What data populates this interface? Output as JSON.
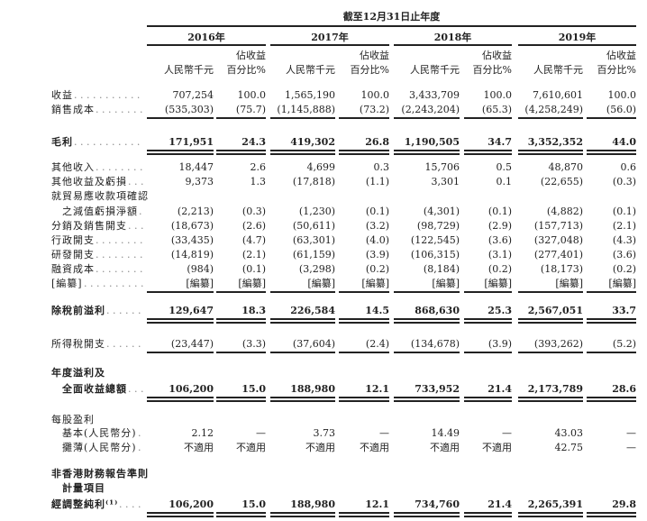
{
  "header": {
    "period": "截至12月31日止年度",
    "years": [
      "2016年",
      "2017年",
      "2018年",
      "2019年"
    ],
    "pct_top": "佔收益",
    "amount_unit": "人民幣千元",
    "pct_unit": "百分比%"
  },
  "rows": [
    {
      "label": "收益",
      "values": [
        "707,254",
        "100.0",
        "1,565,190",
        "100.0",
        "3,433,709",
        "100.0",
        "7,610,601",
        "100.0"
      ]
    },
    {
      "label": "銷售成本",
      "values": [
        "(535,303)",
        "(75.7)",
        "(1,145,888)",
        "(73.2)",
        "(2,243,204)",
        "(65.3)",
        "(4,258,249)",
        "(56.0)"
      ]
    },
    {
      "label": "毛利",
      "values": [
        "171,951",
        "24.3",
        "419,302",
        "26.8",
        "1,190,505",
        "34.7",
        "3,352,352",
        "44.0"
      ]
    },
    {
      "label": "其他收入",
      "values": [
        "18,447",
        "2.6",
        "4,699",
        "0.3",
        "15,706",
        "0.5",
        "48,870",
        "0.6"
      ]
    },
    {
      "label": "其他收益及虧損",
      "values": [
        "9,373",
        "1.3",
        "(17,818)",
        "(1.1)",
        "3,301",
        "0.1",
        "(22,655)",
        "(0.3)"
      ]
    },
    {
      "label": "就貿易應收款項確認",
      "values": []
    },
    {
      "label": "之減值虧損淨額",
      "values": [
        "(2,213)",
        "(0.3)",
        "(1,230)",
        "(0.1)",
        "(4,301)",
        "(0.1)",
        "(4,882)",
        "(0.1)"
      ]
    },
    {
      "label": "分銷及銷售開支",
      "values": [
        "(18,673)",
        "(2.6)",
        "(50,611)",
        "(3.2)",
        "(98,729)",
        "(2.9)",
        "(157,713)",
        "(2.1)"
      ]
    },
    {
      "label": "行政開支",
      "values": [
        "(33,435)",
        "(4.7)",
        "(63,301)",
        "(4.0)",
        "(122,545)",
        "(3.6)",
        "(327,048)",
        "(4.3)"
      ]
    },
    {
      "label": "研發開支",
      "values": [
        "(14,819)",
        "(2.1)",
        "(61,159)",
        "(3.9)",
        "(106,315)",
        "(3.1)",
        "(277,401)",
        "(3.6)"
      ]
    },
    {
      "label": "融資成本",
      "values": [
        "(984)",
        "(0.1)",
        "(3,298)",
        "(0.2)",
        "(8,184)",
        "(0.2)",
        "(18,173)",
        "(0.2)"
      ]
    },
    {
      "label": "[編纂]",
      "values": [
        "[編纂]",
        "[編纂]",
        "[編纂]",
        "[編纂]",
        "[編纂]",
        "[編纂]",
        "[編纂]",
        "[編纂]"
      ]
    },
    {
      "label": "除稅前溢利",
      "values": [
        "129,647",
        "18.3",
        "226,584",
        "14.5",
        "868,630",
        "25.3",
        "2,567,051",
        "33.7"
      ]
    },
    {
      "label": "所得稅開支",
      "values": [
        "(23,447)",
        "(3.3)",
        "(37,604)",
        "(2.4)",
        "(134,678)",
        "(3.9)",
        "(393,262)",
        "(5.2)"
      ]
    },
    {
      "label": "年度溢利及",
      "values": []
    },
    {
      "label": "全面收益總額",
      "values": [
        "106,200",
        "15.0",
        "188,980",
        "12.1",
        "733,952",
        "21.4",
        "2,173,789",
        "28.6"
      ]
    },
    {
      "label": "每股盈利",
      "values": []
    },
    {
      "label": "基本(人民幣分)",
      "values": [
        "2.12",
        "—",
        "3.73",
        "—",
        "14.49",
        "—",
        "43.03",
        "—"
      ]
    },
    {
      "label": "攤薄(人民幣分)",
      "values": [
        "不適用",
        "不適用",
        "不適用",
        "不適用",
        "不適用",
        "不適用",
        "42.75",
        "—"
      ]
    },
    {
      "label": "非香港財務報告準則",
      "values": []
    },
    {
      "label": "計量項目",
      "values": []
    },
    {
      "label": "經調整純利⁽¹⁾",
      "values": [
        "106,200",
        "15.0",
        "188,980",
        "12.1",
        "734,760",
        "21.4",
        "2,265,391",
        "29.8"
      ]
    }
  ]
}
